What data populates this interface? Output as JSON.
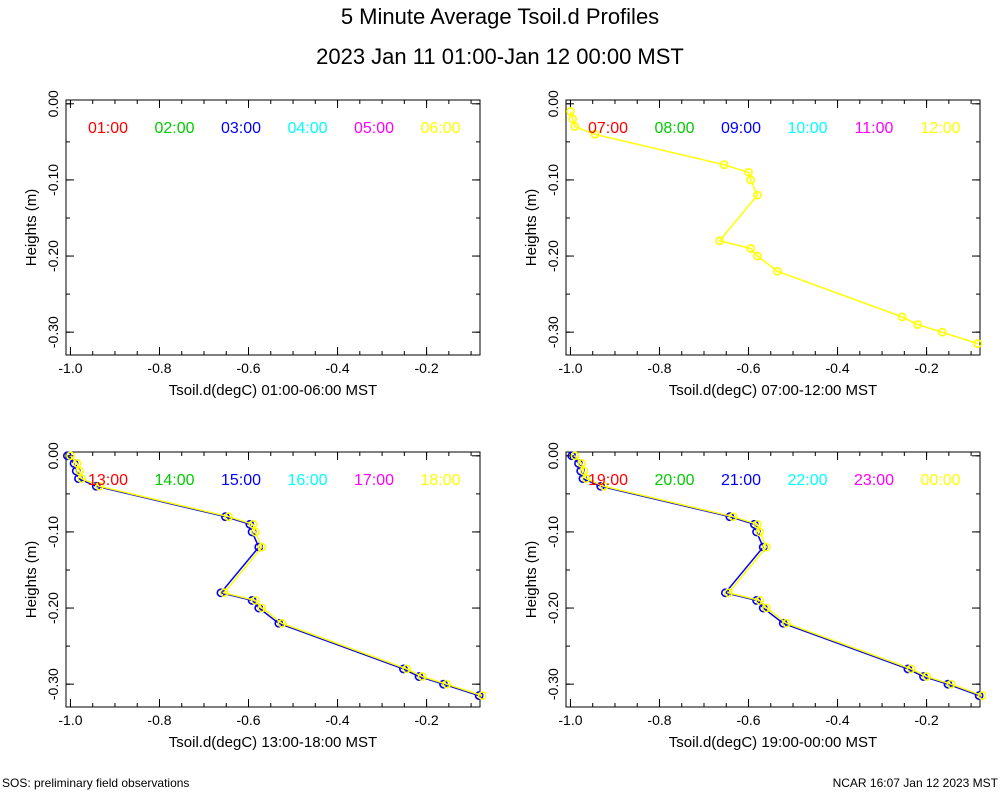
{
  "title": "5 Minute Average Tsoil.d Profiles",
  "subtitle": "2023 Jan 11 01:00-Jan 12 00:00 MST",
  "footer_left": "SOS: preliminary field observations",
  "footer_right": "NCAR 16:07 Jan 12 2023 MST",
  "chart_data": [
    {
      "type": "line",
      "xlabel": "Tsoil.d(degC) 01:00-06:00 MST",
      "ylabel": "Heights (m)",
      "xlim": [
        -1.01,
        -0.08
      ],
      "ylim": [
        -0.33,
        0.005
      ],
      "xticks": [
        "-1.0",
        "-0.8",
        "-0.6",
        "-0.4",
        "-0.2"
      ],
      "yticks": [
        "0.00",
        "-0.10",
        "-0.20",
        "-0.30"
      ],
      "legend": [
        "01:00",
        "02:00",
        "03:00",
        "04:00",
        "05:00",
        "06:00"
      ],
      "series": []
    },
    {
      "type": "line",
      "xlabel": "Tsoil.d(degC) 07:00-12:00 MST",
      "ylabel": "Heights (m)",
      "xlim": [
        -1.01,
        -0.08
      ],
      "ylim": [
        -0.33,
        0.005
      ],
      "xticks": [
        "-1.0",
        "-0.8",
        "-0.6",
        "-0.4",
        "-0.2"
      ],
      "yticks": [
        "0.00",
        "-0.10",
        "-0.20",
        "-0.30"
      ],
      "legend": [
        "07:00",
        "08:00",
        "09:00",
        "10:00",
        "11:00",
        "12:00"
      ],
      "series": [
        {
          "name": "12:00",
          "color": "#ffff00",
          "x": [
            -1.0,
            -0.995,
            -0.99,
            -0.945,
            -0.655,
            -0.6,
            -0.595,
            -0.58,
            -0.665,
            -0.595,
            -0.58,
            -0.535,
            -0.255,
            -0.22,
            -0.165,
            -0.085
          ],
          "y": [
            -0.01,
            -0.02,
            -0.03,
            -0.04,
            -0.08,
            -0.09,
            -0.1,
            -0.12,
            -0.18,
            -0.19,
            -0.2,
            -0.22,
            -0.28,
            -0.29,
            -0.3,
            -0.315
          ]
        }
      ]
    },
    {
      "type": "line",
      "xlabel": "Tsoil.d(degC) 13:00-18:00 MST",
      "ylabel": "Heights (m)",
      "xlim": [
        -1.01,
        -0.08
      ],
      "ylim": [
        -0.33,
        0.005
      ],
      "xticks": [
        "-1.0",
        "-0.8",
        "-0.6",
        "-0.4",
        "-0.2"
      ],
      "yticks": [
        "0.00",
        "-0.10",
        "-0.20",
        "-0.30"
      ],
      "legend": [
        "13:00",
        "14:00",
        "15:00",
        "16:00",
        "17:00",
        "18:00"
      ],
      "series": [
        {
          "name": "17:00",
          "color": "#0000ff",
          "x": [
            -1.007,
            -0.992,
            -0.987,
            -0.982,
            -0.942,
            -0.652,
            -0.597,
            -0.592,
            -0.577,
            -0.662,
            -0.592,
            -0.577,
            -0.532,
            -0.252,
            -0.217,
            -0.162,
            -0.082
          ],
          "y": [
            0.0,
            -0.01,
            -0.02,
            -0.03,
            -0.04,
            -0.08,
            -0.09,
            -0.1,
            -0.12,
            -0.18,
            -0.19,
            -0.2,
            -0.22,
            -0.28,
            -0.29,
            -0.3,
            -0.315
          ]
        },
        {
          "name": "18:00",
          "color": "#ffff00",
          "x": [
            -1.0,
            -0.985,
            -0.98,
            -0.975,
            -0.935,
            -0.645,
            -0.59,
            -0.585,
            -0.57,
            -0.655,
            -0.585,
            -0.57,
            -0.525,
            -0.245,
            -0.21,
            -0.155,
            -0.075
          ],
          "y": [
            0.0,
            -0.01,
            -0.02,
            -0.03,
            -0.04,
            -0.08,
            -0.09,
            -0.1,
            -0.12,
            -0.18,
            -0.19,
            -0.2,
            -0.22,
            -0.28,
            -0.29,
            -0.3,
            -0.315
          ]
        }
      ]
    },
    {
      "type": "line",
      "xlabel": "Tsoil.d(degC) 19:00-00:00 MST",
      "ylabel": "Heights (m)",
      "xlim": [
        -1.01,
        -0.08
      ],
      "ylim": [
        -0.33,
        0.005
      ],
      "xticks": [
        "-1.0",
        "-0.8",
        "-0.6",
        "-0.4",
        "-0.2"
      ],
      "yticks": [
        "0.00",
        "-0.10",
        "-0.20",
        "-0.30"
      ],
      "legend": [
        "19:00",
        "20:00",
        "21:00",
        "22:00",
        "23:00",
        "00:00"
      ],
      "series": [
        {
          "name": "23:00",
          "color": "#0000ff",
          "x": [
            -0.997,
            -0.982,
            -0.977,
            -0.972,
            -0.932,
            -0.642,
            -0.587,
            -0.582,
            -0.567,
            -0.652,
            -0.582,
            -0.567,
            -0.522,
            -0.242,
            -0.207,
            -0.152,
            -0.082
          ],
          "y": [
            0.0,
            -0.01,
            -0.02,
            -0.03,
            -0.04,
            -0.08,
            -0.09,
            -0.1,
            -0.12,
            -0.18,
            -0.19,
            -0.2,
            -0.22,
            -0.28,
            -0.29,
            -0.3,
            -0.315
          ]
        },
        {
          "name": "00:00",
          "color": "#ffff00",
          "x": [
            -0.99,
            -0.975,
            -0.97,
            -0.965,
            -0.925,
            -0.635,
            -0.58,
            -0.575,
            -0.56,
            -0.645,
            -0.575,
            -0.56,
            -0.515,
            -0.235,
            -0.2,
            -0.145,
            -0.075
          ],
          "y": [
            0.0,
            -0.01,
            -0.02,
            -0.03,
            -0.04,
            -0.08,
            -0.09,
            -0.1,
            -0.12,
            -0.18,
            -0.19,
            -0.2,
            -0.22,
            -0.28,
            -0.29,
            -0.3,
            -0.315
          ]
        }
      ]
    }
  ],
  "legend_colors": [
    "#ff0000",
    "#00cc00",
    "#0000ff",
    "#00ffff",
    "#ff00ff",
    "#ffff00"
  ]
}
